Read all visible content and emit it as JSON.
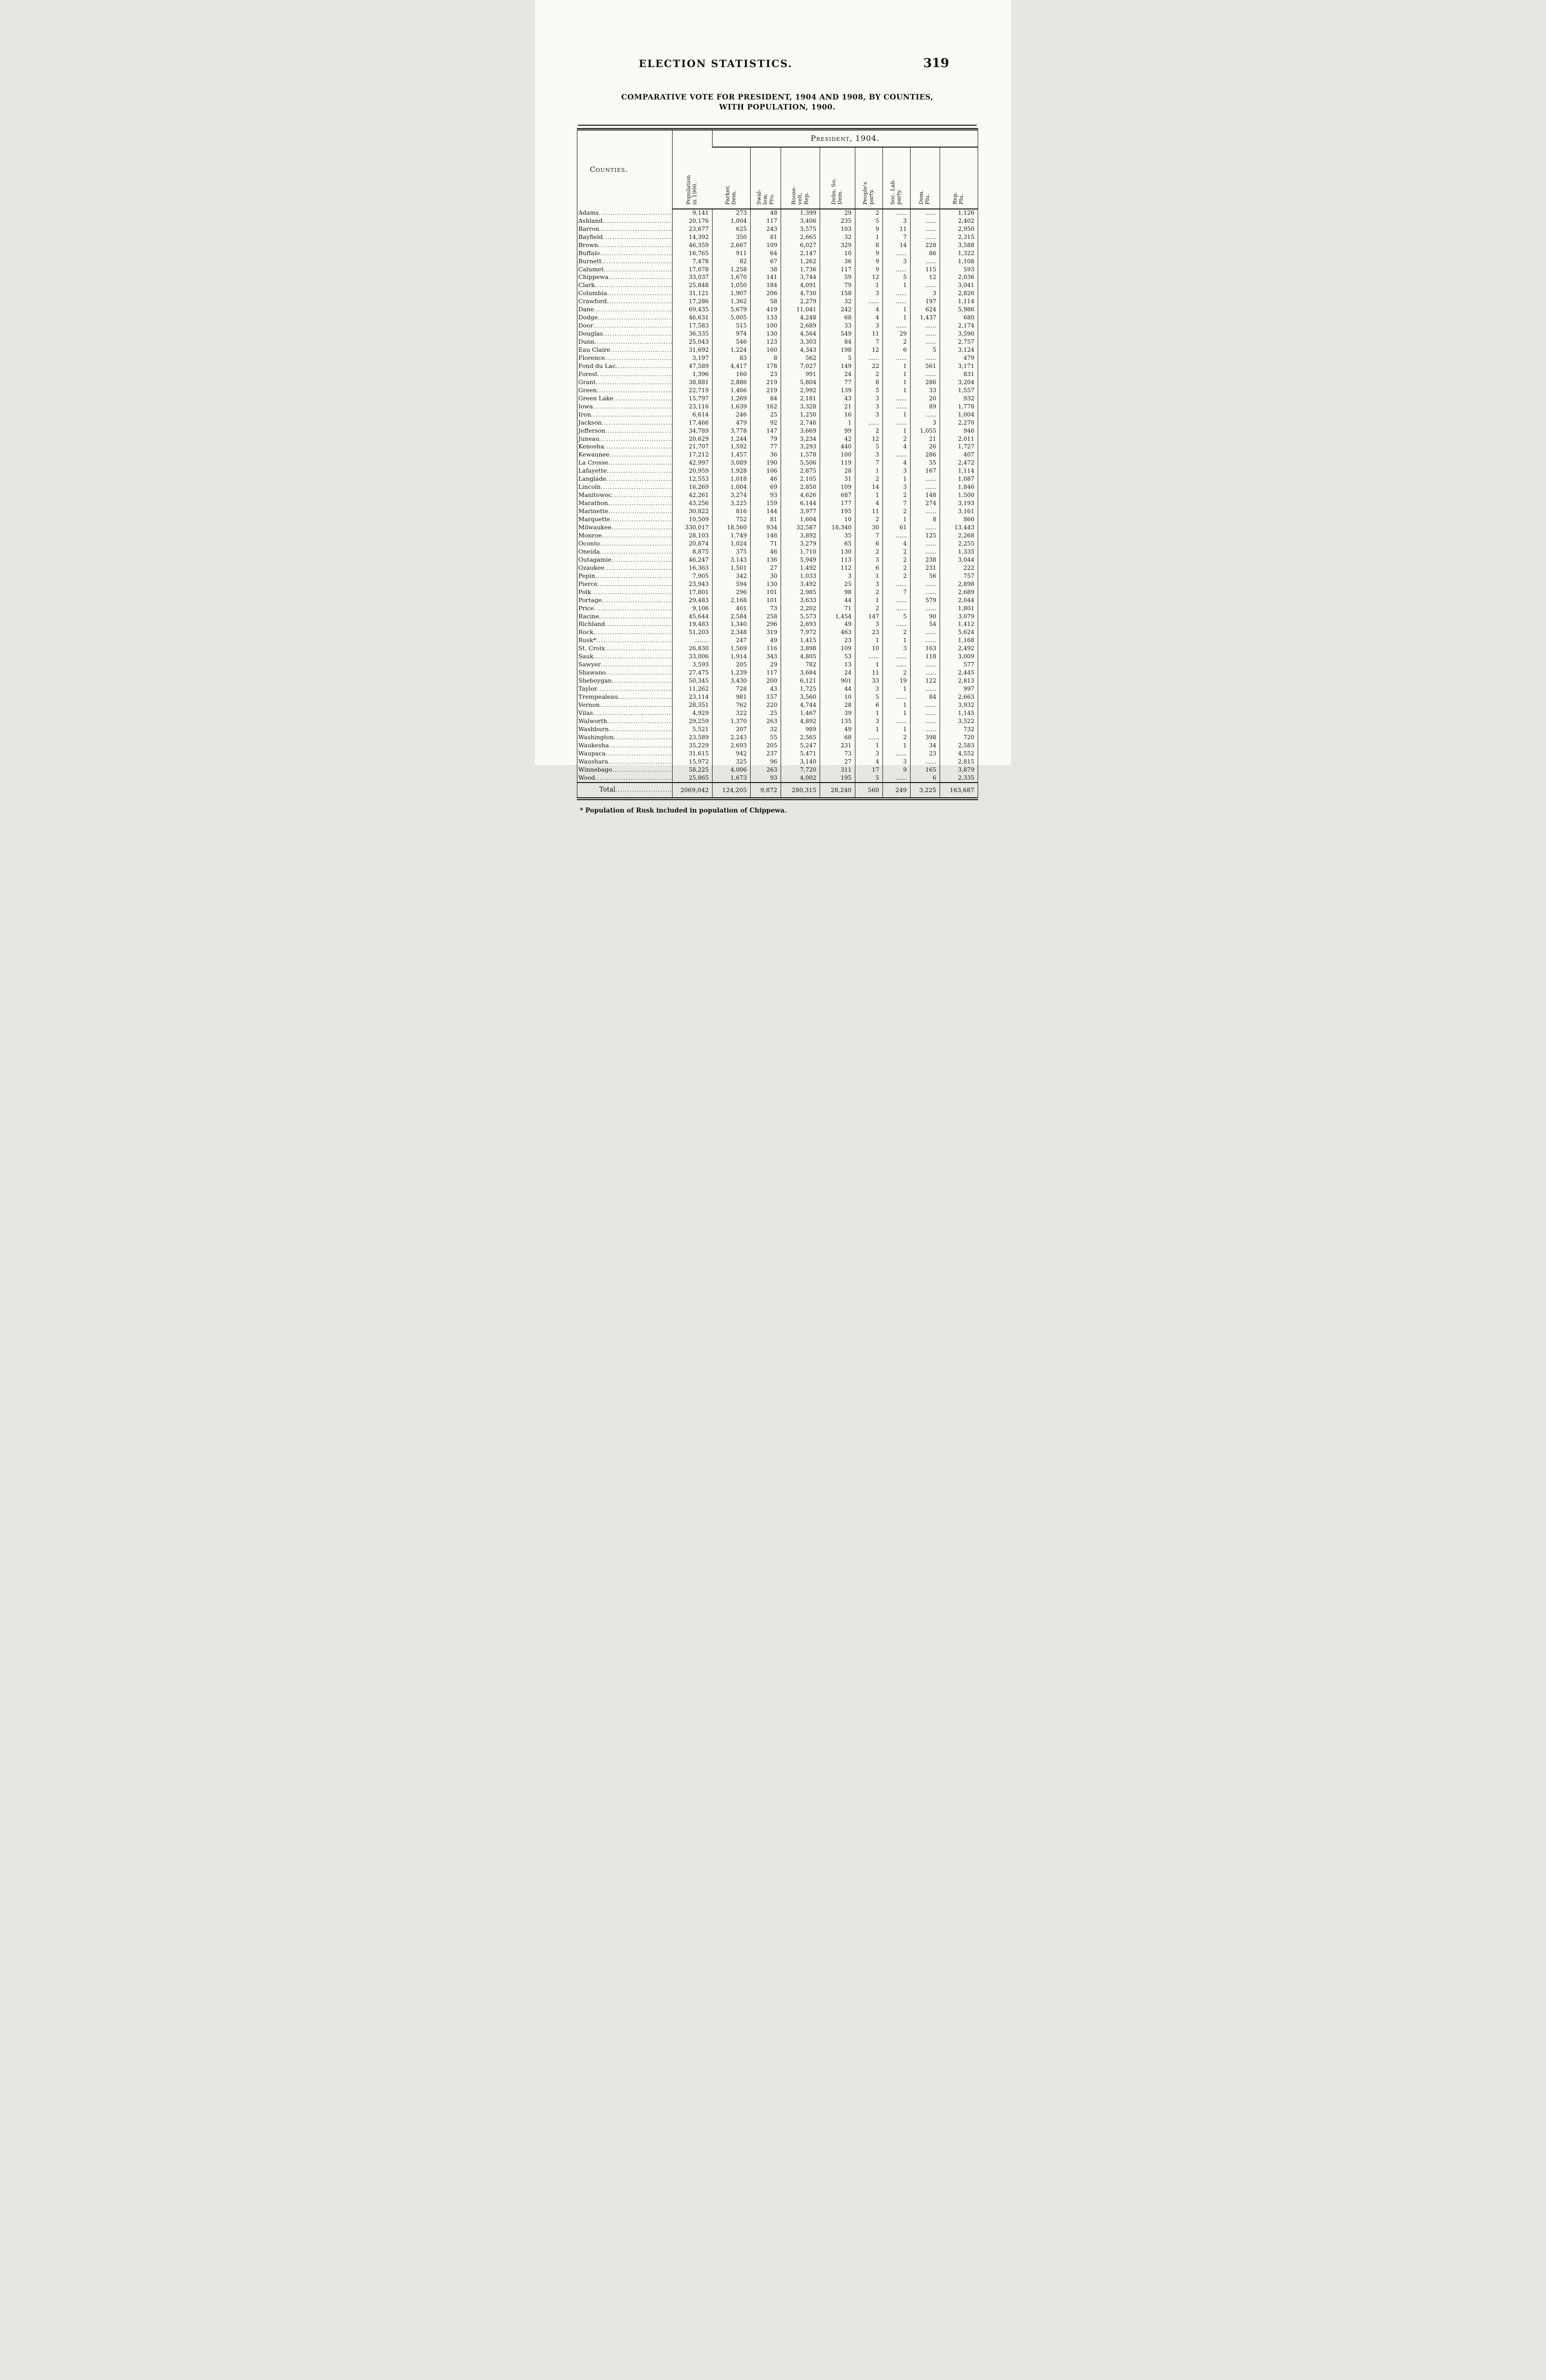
{
  "page": {
    "running_title": "ELECTION STATISTICS.",
    "page_number": "319",
    "subtitle_line1": "COMPARATIVE VOTE FOR PRESIDENT, 1904 AND 1908, BY COUNTIES,",
    "subtitle_line2": "WITH POPULATION, 1900.",
    "footnote": "* Population of Rusk included in population of Chippewa."
  },
  "table": {
    "group_header": "President, 1904.",
    "columns": {
      "counties": "Counties.",
      "population": "Population\nin 1900.",
      "parties": [
        "Parker,\nDem.",
        "Swal-\nlow,\nPro.",
        "Roose-\nvelt,\nRep.",
        "Debs, So.\nDem.",
        "People's\nparty.",
        "Soc. Lab.\nparty.",
        "Dem.\nPlu.",
        "Rep.\nPlu."
      ],
      "keys": [
        "population",
        "parker-dem",
        "swallow-pro",
        "roosevelt-rep",
        "debs-so-dem",
        "peoples-party",
        "soc-lab-party",
        "dem-plu",
        "rep-plu"
      ]
    },
    "rows": [
      {
        "county": "Adams",
        "values": [
          "9,141",
          "273",
          "48",
          "1,399",
          "29",
          "2",
          "......",
          "......",
          "1,126"
        ]
      },
      {
        "county": "Ashland",
        "values": [
          "20,176",
          "1,004",
          "117",
          "3,406",
          "235",
          "5",
          "3",
          "......",
          "2,402"
        ]
      },
      {
        "county": "Barron",
        "values": [
          "23,677",
          "625",
          "243",
          "3,575",
          "103",
          "9",
          "11",
          "......",
          "2,950"
        ]
      },
      {
        "county": "Bayfield",
        "values": [
          "14,392",
          "350",
          "81",
          "2,665",
          "32",
          "1",
          "7",
          "......",
          "2,315"
        ]
      },
      {
        "county": "Brown",
        "values": [
          "46,359",
          "2,667",
          "109",
          "6,027",
          "329",
          "8",
          "14",
          "228",
          "3,588"
        ]
      },
      {
        "county": "Buffalo",
        "values": [
          "16,765",
          "911",
          "64",
          "2,147",
          "10",
          "9",
          "......",
          "86",
          "1,322"
        ]
      },
      {
        "county": "Burnett",
        "values": [
          "7,478",
          "82",
          "67",
          "1,262",
          "36",
          "9",
          "3",
          "......",
          "1,108"
        ]
      },
      {
        "county": "Calumet",
        "values": [
          "17,078",
          "1,258",
          "38",
          "1,736",
          "117",
          "9",
          "......",
          "115",
          "593"
        ]
      },
      {
        "county": "Chippewa",
        "values": [
          "33,037",
          "1,670",
          "141",
          "3,744",
          "59",
          "12",
          "5",
          "12",
          "2,036"
        ]
      },
      {
        "county": "Clark",
        "values": [
          "25,848",
          "1,050",
          "184",
          "4,091",
          "79",
          "1",
          "1",
          "......",
          "3,041"
        ]
      },
      {
        "county": "Columbia",
        "values": [
          "31,121",
          "1,907",
          "206",
          "4,730",
          "158",
          "3",
          "......",
          "3",
          "2,826"
        ]
      },
      {
        "county": "Crawford",
        "values": [
          "17,286",
          "1,362",
          "58",
          "2,279",
          "32",
          "......",
          "......",
          "197",
          "1,114"
        ]
      },
      {
        "county": "Dane",
        "values": [
          "69,435",
          "5,679",
          "419",
          "11,041",
          "242",
          "4",
          "1",
          "624",
          "5,986"
        ]
      },
      {
        "county": "Dodge",
        "values": [
          "46,631",
          "5,005",
          "133",
          "4,248",
          "68",
          "4",
          "1",
          "1,437",
          "680"
        ]
      },
      {
        "county": "Door",
        "values": [
          "17,583",
          "515",
          "100",
          "2,689",
          "33",
          "3",
          "......",
          "......",
          "2,174"
        ]
      },
      {
        "county": "Douglas",
        "values": [
          "36,335",
          "974",
          "130",
          "4,564",
          "549",
          "11",
          "29",
          "......",
          "3,590"
        ]
      },
      {
        "county": "Dunn",
        "values": [
          "25,043",
          "546",
          "123",
          "3,303",
          "84",
          "7",
          "2",
          "......",
          "2,757"
        ]
      },
      {
        "county": "Eau Claire",
        "values": [
          "31,692",
          "1,224",
          "160",
          "4,343",
          "198",
          "12",
          "6",
          "5",
          "3,124"
        ]
      },
      {
        "county": "Florence",
        "values": [
          "3,197",
          "83",
          "8",
          "562",
          "5",
          "......",
          "......",
          "......",
          "479"
        ]
      },
      {
        "county": "Fond du Lac",
        "values": [
          "47,589",
          "4,417",
          "178",
          "7,027",
          "149",
          "22",
          "1",
          "561",
          "3,171"
        ]
      },
      {
        "county": "Forest",
        "values": [
          "1,396",
          "160",
          "23",
          "991",
          "24",
          "2",
          "1",
          "......",
          "831"
        ]
      },
      {
        "county": "Grant",
        "values": [
          "38,881",
          "2,886",
          "219",
          "5,804",
          "77",
          "8",
          "1",
          "286",
          "3,204"
        ]
      },
      {
        "county": "Green",
        "values": [
          "22,719",
          "1,466",
          "219",
          "2,992",
          "139",
          "5",
          "1",
          "33",
          "1,557"
        ]
      },
      {
        "county": "Green Lake",
        "values": [
          "15,797",
          "1,269",
          "84",
          "2,181",
          "43",
          "3",
          "......",
          "20",
          "932"
        ]
      },
      {
        "county": "Iowa",
        "values": [
          "23,116",
          "1,639",
          "162",
          "3,328",
          "21",
          "3",
          "......",
          "89",
          "1,778"
        ]
      },
      {
        "county": "Iron",
        "values": [
          "6,614",
          "246",
          "25",
          "1,250",
          "16",
          "3",
          "1",
          "......",
          "1,004"
        ]
      },
      {
        "county": "Jackson",
        "values": [
          "17,466",
          "479",
          "92",
          "2,746",
          "1",
          "......",
          "......",
          "3",
          "2,270"
        ]
      },
      {
        "county": "Jefferson",
        "values": [
          "34,789",
          "3,778",
          "147",
          "3,669",
          "99",
          "2",
          "1",
          "1,055",
          "946"
        ]
      },
      {
        "county": "Juneau",
        "values": [
          "20,629",
          "1,244",
          "79",
          "3,234",
          "42",
          "12",
          "2",
          "21",
          "2,011"
        ]
      },
      {
        "county": "Kenosha",
        "values": [
          "21,707",
          "1,592",
          "77",
          "3,293",
          "440",
          "5",
          "4",
          "26",
          "1,727"
        ]
      },
      {
        "county": "Kewaunee",
        "values": [
          "17,212",
          "1,457",
          "36",
          "1,578",
          "100",
          "3",
          "......",
          "286",
          "407"
        ]
      },
      {
        "county": "La Crosse",
        "values": [
          "42,997",
          "3,089",
          "190",
          "5,506",
          "119",
          "7",
          "4",
          "55",
          "2,472"
        ]
      },
      {
        "county": "Lafayette",
        "values": [
          "20,959",
          "1,928",
          "106",
          "2,875",
          "28",
          "1",
          "3",
          "167",
          "1,114"
        ]
      },
      {
        "county": "Langlade",
        "values": [
          "12,553",
          "1,018",
          "46",
          "2,105",
          "31",
          "2",
          "1",
          "......",
          "1,087"
        ]
      },
      {
        "county": "Lincoln",
        "values": [
          "16,269",
          "1,004",
          "69",
          "2,850",
          "109",
          "14",
          "3",
          "......",
          "1,846"
        ]
      },
      {
        "county": "Manitowoc",
        "values": [
          "42,261",
          "3,274",
          "93",
          "4,626",
          "687",
          "1",
          "2",
          "148",
          "1,500"
        ]
      },
      {
        "county": "Marathon",
        "values": [
          "43,256",
          "3,225",
          "159",
          "6,144",
          "177",
          "4",
          "7",
          "274",
          "3,193"
        ]
      },
      {
        "county": "Marinette",
        "values": [
          "30,822",
          "816",
          "144",
          "3,977",
          "195",
          "11",
          "2",
          "......",
          "3,161"
        ]
      },
      {
        "county": "Marquette",
        "values": [
          "10,509",
          "752",
          "81",
          "1,604",
          "10",
          "2",
          "1",
          "8",
          "860"
        ]
      },
      {
        "county": "Milwaukee",
        "values": [
          "330,017",
          "18,560",
          "934",
          "32,587",
          "18,340",
          "30",
          "61",
          "......",
          "13,443"
        ]
      },
      {
        "county": "Monroe",
        "values": [
          "28,103",
          "1,749",
          "146",
          "3,892",
          "35",
          "7",
          "......",
          "125",
          "2,268"
        ]
      },
      {
        "county": "Oconto",
        "values": [
          "20,874",
          "1,024",
          "71",
          "3,279",
          "65",
          "6",
          "4",
          "......",
          "2,255"
        ]
      },
      {
        "county": "Oneida",
        "values": [
          "8,875",
          "375",
          "46",
          "1,710",
          "130",
          "2",
          "2",
          "......",
          "1,335"
        ]
      },
      {
        "county": "Outagamie",
        "values": [
          "46,247",
          "3,143",
          "136",
          "5,949",
          "113",
          "3",
          "2",
          "238",
          "3,044"
        ]
      },
      {
        "county": "Ozaukee",
        "values": [
          "16,363",
          "1,501",
          "27",
          "1,492",
          "112",
          "6",
          "2",
          "231",
          "222"
        ]
      },
      {
        "county": "Pepin",
        "values": [
          "7,905",
          "342",
          "30",
          "1,033",
          "3",
          "1",
          "2",
          "56",
          "757"
        ]
      },
      {
        "county": "Pierce",
        "values": [
          "23,943",
          "594",
          "130",
          "3,492",
          "25",
          "3",
          "......",
          "......",
          "2,898"
        ]
      },
      {
        "county": "Polk",
        "values": [
          "17,801",
          "296",
          "101",
          "2,985",
          "98",
          "2",
          "7",
          "......",
          "2,689"
        ]
      },
      {
        "county": "Portage",
        "values": [
          "29,483",
          "2,168",
          "101",
          "3,633",
          "44",
          "1",
          "......",
          "579",
          "2,044"
        ]
      },
      {
        "county": "Price",
        "values": [
          "9,106",
          "401",
          "73",
          "2,202",
          "71",
          "2",
          "......",
          "......",
          "1,801"
        ]
      },
      {
        "county": "Racine",
        "values": [
          "45,644",
          "2,584",
          "258",
          "5,573",
          "1,454",
          "147",
          "5",
          "90",
          "3,079"
        ]
      },
      {
        "county": "Richland",
        "values": [
          "19,483",
          "1,340",
          "296",
          "2,693",
          "49",
          "3",
          "......",
          "54",
          "1,412"
        ]
      },
      {
        "county": "Rock",
        "values": [
          "51,203",
          "2,348",
          "319",
          "7,972",
          "463",
          "23",
          "2",
          "......",
          "5,624"
        ]
      },
      {
        "county": "Rusk*",
        "values": [
          "........",
          "247",
          "49",
          "1,415",
          "23",
          "1",
          "1",
          "......",
          "1,168"
        ]
      },
      {
        "county": "St. Croix",
        "values": [
          "26,830",
          "1,569",
          "116",
          "3,898",
          "109",
          "10",
          "3",
          "163",
          "2,492"
        ]
      },
      {
        "county": "Sauk",
        "values": [
          "33,006",
          "1,914",
          "343",
          "4,805",
          "53",
          "......",
          "......",
          "118",
          "3,009"
        ]
      },
      {
        "county": "Sawyer",
        "values": [
          "3,593",
          "205",
          "29",
          "782",
          "13",
          "1",
          "......",
          "......",
          "577"
        ]
      },
      {
        "county": "Shawano",
        "values": [
          "27,475",
          "1,239",
          "117",
          "3,684",
          "24",
          "11",
          "2",
          "......",
          "2,445"
        ]
      },
      {
        "county": "Sheboygan",
        "values": [
          "50,345",
          "3,430",
          "200",
          "6,121",
          "901",
          "33",
          "19",
          "122",
          "2,813"
        ]
      },
      {
        "county": "Taylor",
        "values": [
          "11,262",
          "728",
          "43",
          "1,725",
          "44",
          "3",
          "1",
          "......",
          "997"
        ]
      },
      {
        "county": "Trempealeau",
        "values": [
          "23,114",
          "981",
          "157",
          "3,560",
          "10",
          "5",
          "......",
          "84",
          "2,663"
        ]
      },
      {
        "county": "Vernon",
        "values": [
          "28,351",
          "762",
          "220",
          "4,744",
          "28",
          "6",
          "1",
          "......",
          "3,932"
        ]
      },
      {
        "county": "Vilas",
        "values": [
          "4,929",
          "322",
          "25",
          "1,467",
          "39",
          "1",
          "1",
          "......",
          "1,145"
        ]
      },
      {
        "county": "Walworth",
        "values": [
          "29,259",
          "1,370",
          "263",
          "4,892",
          "135",
          "3",
          "......",
          "......",
          "3,522"
        ]
      },
      {
        "county": "Washburn",
        "values": [
          "5,521",
          "207",
          "32",
          "989",
          "49",
          "1",
          "1",
          "......",
          "732"
        ]
      },
      {
        "county": "Washington",
        "values": [
          "23,589",
          "2,243",
          "55",
          "2,565",
          "68",
          "......",
          "2",
          "398",
          "720"
        ]
      },
      {
        "county": "Waukesha",
        "values": [
          "35,229",
          "2,693",
          "205",
          "5,247",
          "231",
          "1",
          "1",
          "34",
          "2,583"
        ]
      },
      {
        "county": "Waupaca",
        "values": [
          "31,615",
          "942",
          "237",
          "5,471",
          "73",
          "3",
          "......",
          "23",
          "4,552"
        ]
      },
      {
        "county": "Waushara",
        "values": [
          "15,972",
          "325",
          "96",
          "3,140",
          "27",
          "4",
          "3",
          "......",
          "2,815"
        ]
      },
      {
        "county": "Winnebago",
        "values": [
          "58,225",
          "4,006",
          "263",
          "7,720",
          "311",
          "17",
          "9",
          "165",
          "3,879"
        ]
      },
      {
        "county": "Wood",
        "values": [
          "25,865",
          "1,673",
          "93",
          "4,002",
          "195",
          "5",
          "......",
          "6",
          "2,335"
        ]
      }
    ],
    "total": {
      "label": "Total",
      "values": [
        "2069,042",
        "124,205",
        "9,872",
        "280,315",
        "28,240",
        "560",
        "249",
        "3,225",
        "163,687"
      ]
    }
  }
}
